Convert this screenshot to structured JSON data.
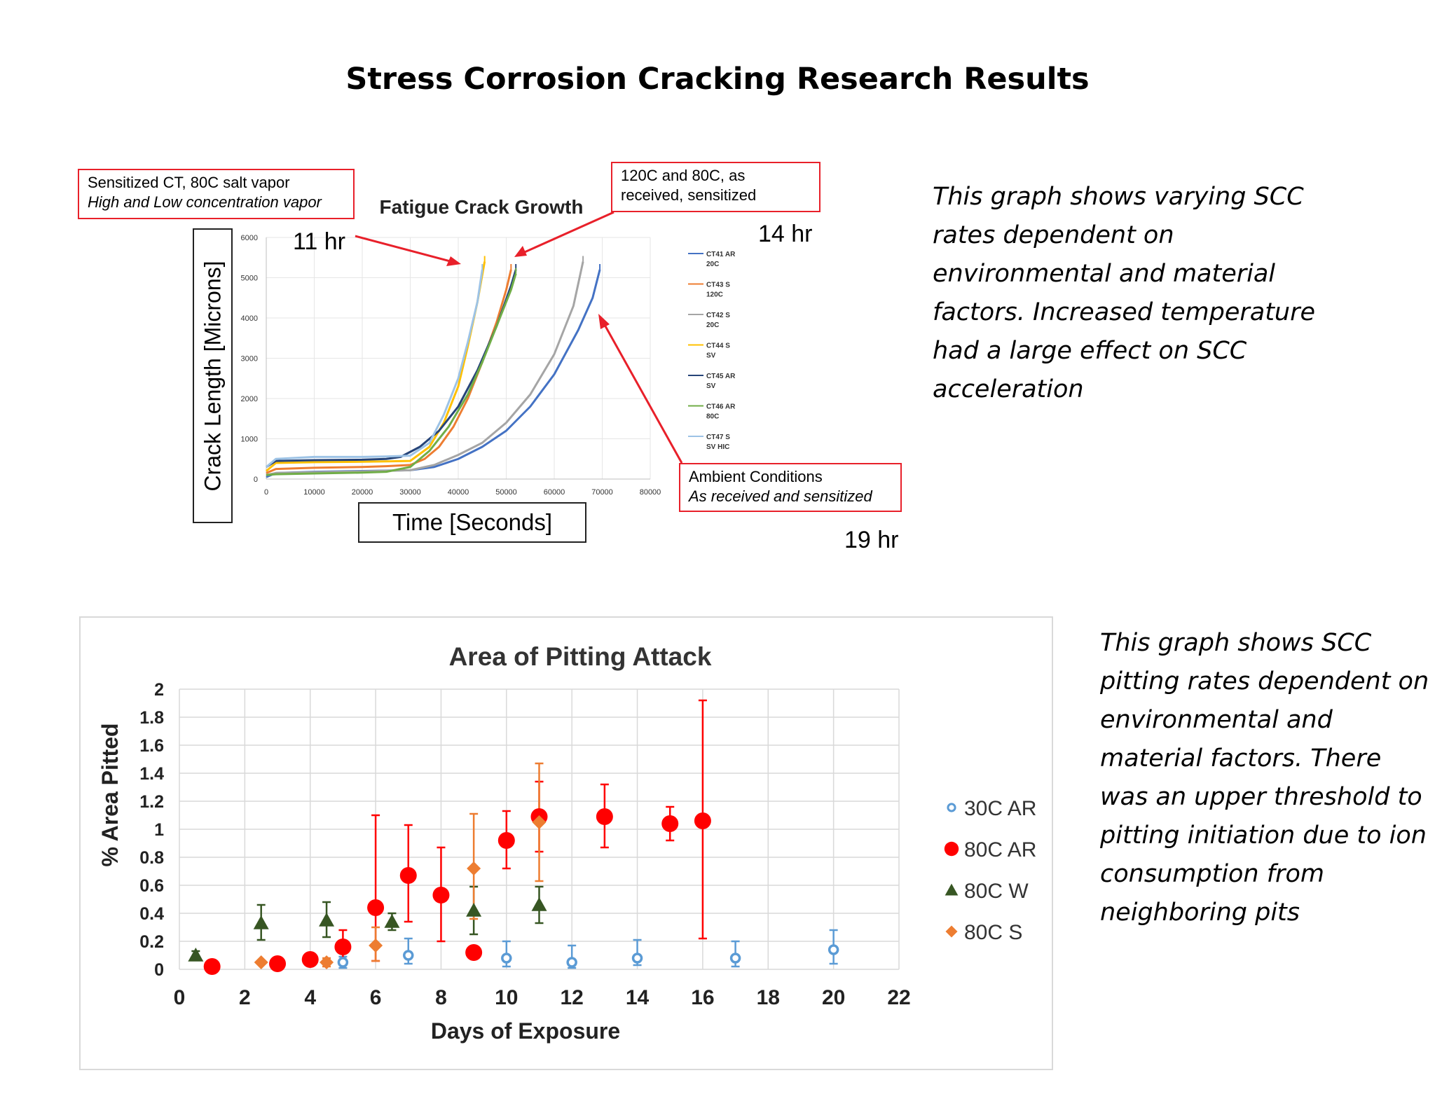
{
  "page_title": "Stress Corrosion Cracking Research Results",
  "annotations": {
    "sensitized": {
      "line1": "Sensitized CT, 80C salt vapor",
      "line2": "High and Low concentration vapor"
    },
    "high_temp": {
      "line1": "120C and 80C, as",
      "line2": "received, sensitized"
    },
    "ambient": {
      "line1": "Ambient Conditions",
      "line2": "As received and sensitized"
    },
    "time_11": "11 hr",
    "time_14": "14 hr",
    "time_19": "19 hr",
    "crack_ylabel": "Crack Length [Microns]",
    "crack_xlabel": "Time [Seconds]"
  },
  "descriptions": {
    "top": "This graph shows varying SCC rates dependent on environmental and material factors. Increased temperature had a large effect on SCC acceleration",
    "bottom": "This graph shows SCC pitting rates dependent on environmental and material factors. There was an upper threshold to pitting initiation due to ion consumption from neighboring pits"
  },
  "colors": {
    "red": "#e8202a",
    "blue_marker": "#5b9bd5",
    "red_marker": "#ff0000",
    "green_marker": "#375623",
    "orange_marker": "#ed7d31"
  },
  "chart_data": [
    {
      "type": "line",
      "title": "Fatigue Crack Growth",
      "xlabel": "Time [Seconds]",
      "ylabel": "Crack Length [Microns]",
      "xlim": [
        0,
        80000
      ],
      "ylim": [
        0,
        6000
      ],
      "x_ticks": [
        0,
        10000,
        20000,
        30000,
        40000,
        50000,
        60000,
        70000,
        80000
      ],
      "y_ticks": [
        0,
        1000,
        2000,
        3000,
        4000,
        5000,
        6000
      ],
      "grid": true,
      "legend_position": "right",
      "series": [
        {
          "name": "CT41 AR 20C",
          "color": "#4472c4",
          "x": [
            0,
            2000,
            10000,
            20000,
            30000,
            35000,
            40000,
            45000,
            50000,
            55000,
            60000,
            65000,
            68000,
            69500
          ],
          "y": [
            50,
            150,
            180,
            200,
            220,
            300,
            500,
            800,
            1200,
            1800,
            2600,
            3700,
            4500,
            5200
          ]
        },
        {
          "name": "CT43 S 120C",
          "color": "#ed7d31",
          "x": [
            0,
            2000,
            10000,
            20000,
            25000,
            30000,
            33000,
            36000,
            39000,
            42000,
            45000,
            48000,
            50000,
            51000
          ],
          "y": [
            150,
            250,
            280,
            300,
            320,
            350,
            500,
            800,
            1300,
            2000,
            2900,
            3900,
            4700,
            5200
          ]
        },
        {
          "name": "CT42 S 20C",
          "color": "#a5a5a5",
          "x": [
            0,
            2000,
            10000,
            20000,
            30000,
            35000,
            40000,
            45000,
            50000,
            55000,
            60000,
            64000,
            66000
          ],
          "y": [
            100,
            150,
            170,
            190,
            220,
            350,
            600,
            900,
            1400,
            2100,
            3100,
            4300,
            5400
          ]
        },
        {
          "name": "CT44 S SV",
          "color": "#ffc000",
          "x": [
            0,
            2000,
            10000,
            20000,
            25000,
            30000,
            34000,
            37000,
            40000,
            42000,
            44000,
            45500
          ],
          "y": [
            200,
            400,
            420,
            430,
            440,
            450,
            800,
            1400,
            2300,
            3300,
            4400,
            5400
          ]
        },
        {
          "name": "CT45 AR SV",
          "color": "#264478",
          "x": [
            0,
            2000,
            10000,
            20000,
            25000,
            28000,
            32000,
            36000,
            40000,
            44000,
            48000,
            51000,
            52000
          ],
          "y": [
            300,
            450,
            470,
            480,
            500,
            550,
            800,
            1200,
            1800,
            2700,
            3800,
            4800,
            5200
          ]
        },
        {
          "name": "CT46 AR 80C",
          "color": "#70ad47",
          "x": [
            0,
            2000,
            10000,
            20000,
            25000,
            30000,
            34000,
            38000,
            42000,
            45000,
            48000,
            51000,
            52000
          ],
          "y": [
            100,
            120,
            140,
            160,
            180,
            300,
            700,
            1300,
            2100,
            2900,
            3800,
            4700,
            5100
          ]
        },
        {
          "name": "CT47 S SV HIC",
          "color": "#9dc3e6",
          "x": [
            0,
            2000,
            10000,
            20000,
            25000,
            30000,
            34000,
            37000,
            40000,
            42000,
            44000,
            45000
          ],
          "y": [
            300,
            500,
            550,
            550,
            560,
            580,
            900,
            1600,
            2500,
            3400,
            4400,
            5200
          ]
        }
      ]
    },
    {
      "type": "scatter",
      "title": "Area of Pitting Attack",
      "xlabel": "Days of Exposure",
      "ylabel": "% Area Pitted",
      "xlim": [
        0,
        22
      ],
      "ylim": [
        0,
        2
      ],
      "x_ticks": [
        0,
        2,
        4,
        6,
        8,
        10,
        12,
        14,
        16,
        18,
        20,
        22
      ],
      "y_ticks": [
        "0",
        "0.2",
        "0.4",
        "0.6",
        "0.8",
        "1",
        "1.2",
        "1.4",
        "1.6",
        "1.8",
        "2"
      ],
      "grid": true,
      "legend_position": "right",
      "series": [
        {
          "name": "30C AR",
          "marker": "open-circle",
          "color": "#5b9bd5",
          "x": [
            5,
            7,
            10,
            12,
            14,
            17,
            20
          ],
          "y": [
            0.05,
            0.1,
            0.08,
            0.05,
            0.08,
            0.08,
            0.14
          ],
          "err_low": [
            0.04,
            0.06,
            0.06,
            0.04,
            0.05,
            0.06,
            0.1
          ],
          "err_high": [
            0.04,
            0.12,
            0.12,
            0.12,
            0.13,
            0.12,
            0.14
          ]
        },
        {
          "name": "80C AR",
          "marker": "filled-circle",
          "color": "#ff0000",
          "x": [
            1,
            3,
            4,
            5,
            6,
            7,
            8,
            9,
            10,
            11,
            13,
            15,
            16
          ],
          "y": [
            0.02,
            0.04,
            0.07,
            0.16,
            0.44,
            0.67,
            0.53,
            0.12,
            0.92,
            1.09,
            1.09,
            1.04,
            1.06
          ],
          "err_low": [
            0,
            0,
            0,
            0.1,
            0.38,
            0.33,
            0.33,
            0,
            0.2,
            0.25,
            0.22,
            0.12,
            0.84
          ],
          "err_high": [
            0,
            0,
            0,
            0.12,
            0.66,
            0.36,
            0.34,
            0,
            0.21,
            0.25,
            0.23,
            0.12,
            0.86
          ]
        },
        {
          "name": "80C W",
          "marker": "triangle",
          "color": "#375623",
          "x": [
            0.5,
            2.5,
            4.5,
            6.5,
            9,
            11
          ],
          "y": [
            0.1,
            0.33,
            0.35,
            0.34,
            0.42,
            0.46
          ],
          "err_low": [
            0.03,
            0.12,
            0.12,
            0.06,
            0.17,
            0.13
          ],
          "err_high": [
            0.03,
            0.13,
            0.13,
            0.06,
            0.17,
            0.13
          ]
        },
        {
          "name": "80C S",
          "marker": "diamond",
          "color": "#ed7d31",
          "x": [
            2.5,
            4.5,
            6,
            9,
            11
          ],
          "y": [
            0.05,
            0.05,
            0.17,
            0.72,
            1.05
          ],
          "err_low": [
            0,
            0.03,
            0.11,
            0.36,
            0.42
          ],
          "err_high": [
            0,
            0.03,
            0.13,
            0.39,
            0.42
          ]
        }
      ]
    }
  ]
}
